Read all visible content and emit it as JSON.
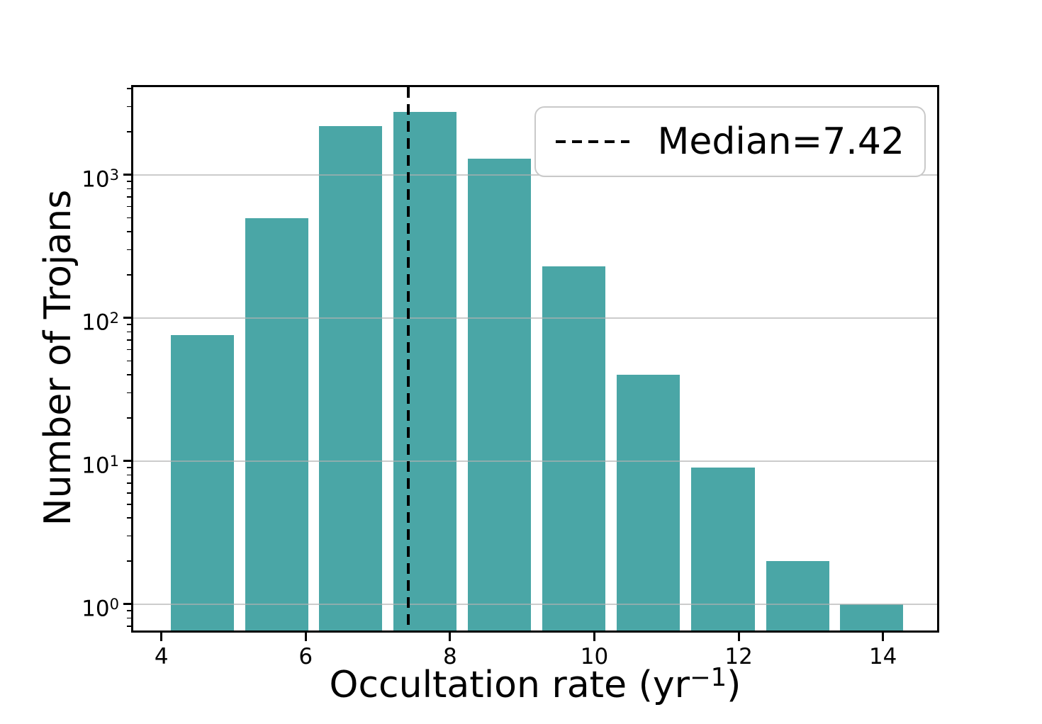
{
  "chart_data": {
    "type": "bar",
    "subtype": "histogram",
    "title": "",
    "ylabel": "Number of Trojans",
    "xlabel_parts": {
      "prefix": "Occultation rate (yr",
      "superscript": "−1",
      "suffix": ")"
    },
    "yscale": "log",
    "xlim": [
      3.61,
      14.75
    ],
    "ylim": [
      0.655,
      4100
    ],
    "bin_edges": [
      4.05,
      5.08,
      6.11,
      7.14,
      8.17,
      9.2,
      10.23,
      11.26,
      12.3,
      13.33,
      14.36
    ],
    "bar_centers": [
      4.57,
      5.6,
      6.63,
      7.66,
      8.69,
      9.72,
      10.75,
      11.78,
      12.81,
      13.84
    ],
    "values": [
      76,
      500,
      2200,
      2750,
      1300,
      230,
      40,
      9,
      2,
      1
    ],
    "bar_rwidth": 0.85,
    "grid": {
      "show": true,
      "axis": "y",
      "color": "#b0b0b0"
    },
    "legend_position": "upper right",
    "x_ticks": [
      {
        "value": 4,
        "label": "4"
      },
      {
        "value": 6,
        "label": "6"
      },
      {
        "value": 8,
        "label": "8"
      },
      {
        "value": 10,
        "label": "10"
      },
      {
        "value": 12,
        "label": "12"
      },
      {
        "value": 14,
        "label": "14"
      }
    ],
    "y_ticks": [
      {
        "value": 1,
        "base": "10",
        "exp": "0"
      },
      {
        "value": 10,
        "base": "10",
        "exp": "1"
      },
      {
        "value": 100,
        "base": "10",
        "exp": "2"
      },
      {
        "value": 1000,
        "base": "10",
        "exp": "3"
      }
    ],
    "median": {
      "value": 7.42,
      "legend_label": "Median=7.42"
    },
    "colors": {
      "bar": "#4AA6A6",
      "median_line": "#000000",
      "spine": "#000000"
    }
  }
}
